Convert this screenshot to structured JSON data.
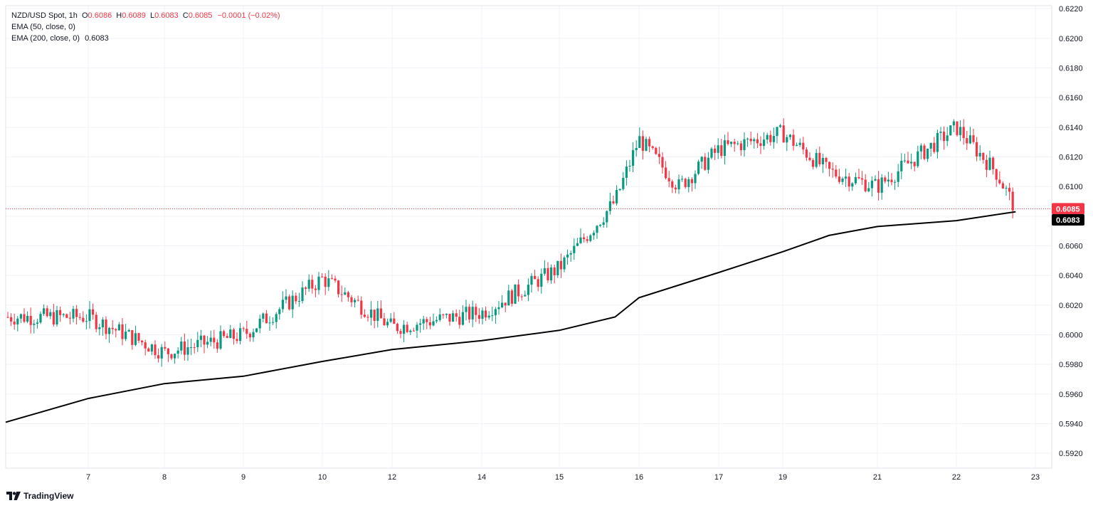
{
  "legend": {
    "symbol": "NZD/USD Spot, 1h",
    "o_label": "O",
    "o_value": "0.6086",
    "h_label": "H",
    "h_value": "0.6089",
    "l_label": "L",
    "l_value": "0.6083",
    "c_label": "C",
    "c_value": "0.6085",
    "change": "−0.0001 (−0.02%)",
    "ema50": "EMA (50, close, 0)",
    "ema200": "EMA (200, close, 0)",
    "ema200_value": "0.6083"
  },
  "brand": {
    "name": "TradingView",
    "icon": "tradingview-logo-icon"
  },
  "colors": {
    "up": "#089981",
    "down": "#f23645",
    "ema": "#000000",
    "grid": "#f0f3fa",
    "text": "#131722"
  },
  "chart_data": {
    "type": "candlestick",
    "symbol": "NZD/USD Spot",
    "timeframe": "1h",
    "ylim": [
      0.591,
      0.6222
    ],
    "y_ticks": [
      "0.5920",
      "0.5940",
      "0.5960",
      "0.5980",
      "0.6000",
      "0.6020",
      "0.6040",
      "0.6060",
      "0.6080",
      "0.6100",
      "0.6120",
      "0.6140",
      "0.6160",
      "0.6180",
      "0.6200",
      "0.6220"
    ],
    "x_ticks": [
      "7",
      "8",
      "9",
      "10",
      "12",
      "14",
      "15",
      "16",
      "17",
      "19",
      "21",
      "22",
      "23"
    ],
    "last_price_label": "0.6085",
    "ema_price_label": "0.6083",
    "grid": true,
    "close_series": [
      {
        "x": "6",
        "close": 0.6012
      },
      {
        "x": "7",
        "close": 0.6012
      },
      {
        "x": "8",
        "close": 0.5988
      },
      {
        "x": "9",
        "close": 0.6
      },
      {
        "x": "10",
        "close": 0.6038
      },
      {
        "x": "12",
        "close": 0.6005
      },
      {
        "x": "14",
        "close": 0.6015
      },
      {
        "x": "15",
        "close": 0.6045
      },
      {
        "x": "15.7",
        "close": 0.609
      },
      {
        "x": "16",
        "close": 0.6132
      },
      {
        "x": "16.5",
        "close": 0.61
      },
      {
        "x": "17",
        "close": 0.6125
      },
      {
        "x": "19",
        "close": 0.6136
      },
      {
        "x": "20",
        "close": 0.611
      },
      {
        "x": "21",
        "close": 0.61
      },
      {
        "x": "22",
        "close": 0.614
      },
      {
        "x": "22.5",
        "close": 0.611
      },
      {
        "x": "22.75",
        "close": 0.6085
      }
    ],
    "ema200": [
      {
        "x": "6",
        "value": 0.5941
      },
      {
        "x": "7",
        "value": 0.5957
      },
      {
        "x": "8",
        "value": 0.5967
      },
      {
        "x": "9",
        "value": 0.5972
      },
      {
        "x": "10",
        "value": 0.5982
      },
      {
        "x": "12",
        "value": 0.599
      },
      {
        "x": "14",
        "value": 0.5996
      },
      {
        "x": "15",
        "value": 0.6003
      },
      {
        "x": "15.7",
        "value": 0.6012
      },
      {
        "x": "16",
        "value": 0.6025
      },
      {
        "x": "17",
        "value": 0.6042
      },
      {
        "x": "19",
        "value": 0.6056
      },
      {
        "x": "20",
        "value": 0.6067
      },
      {
        "x": "21",
        "value": 0.6073
      },
      {
        "x": "22",
        "value": 0.6077
      },
      {
        "x": "22.75",
        "value": 0.6083
      }
    ]
  }
}
